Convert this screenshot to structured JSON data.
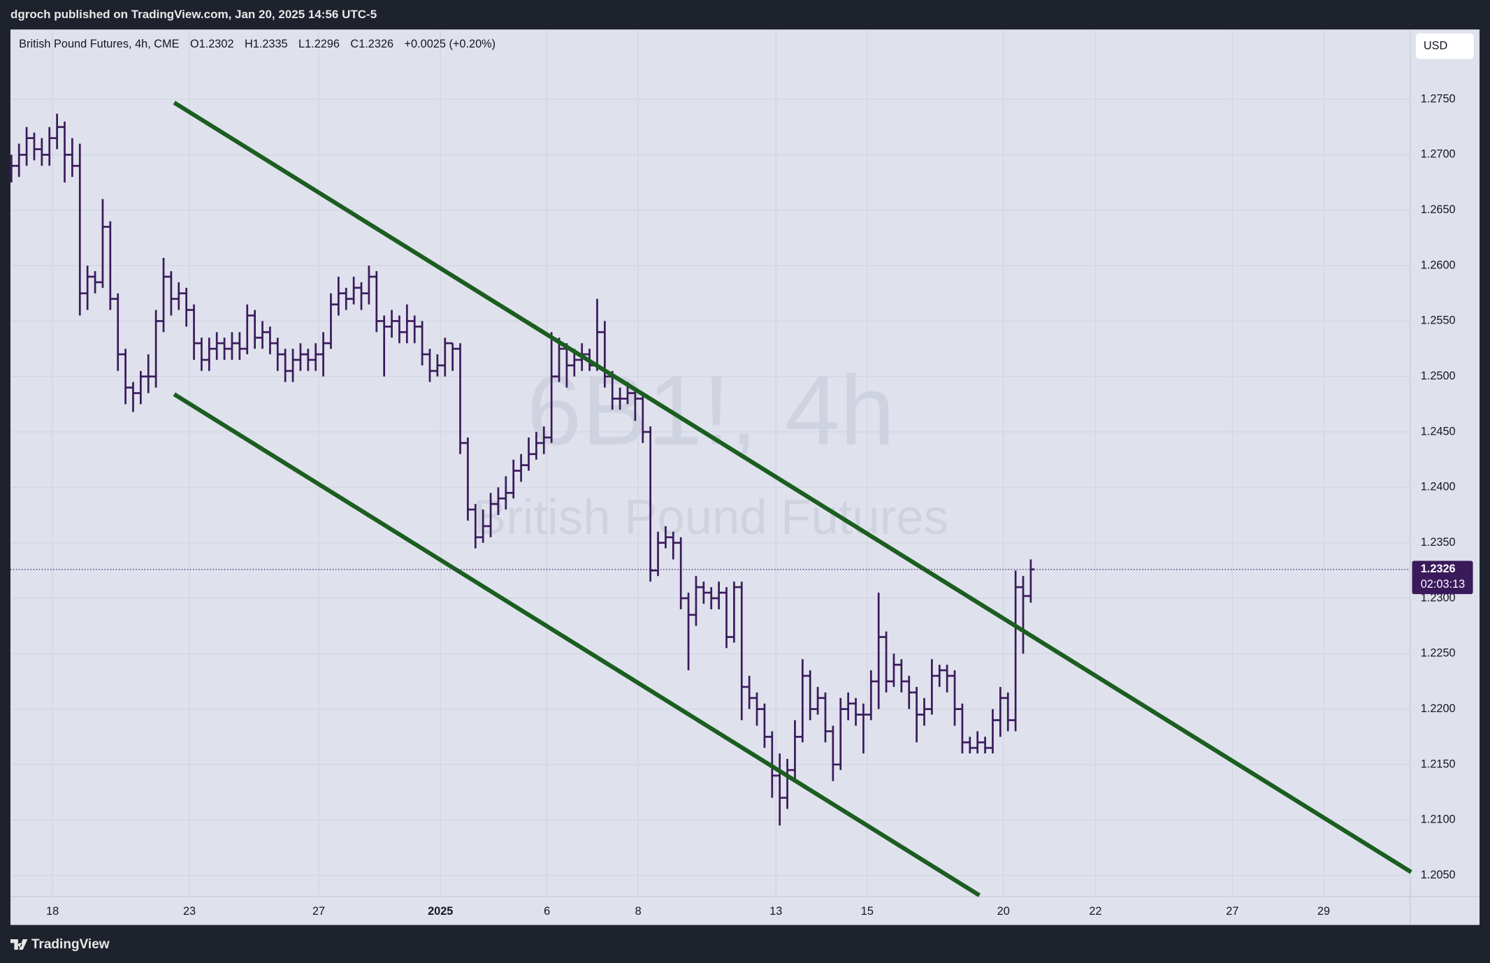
{
  "header": "dgroch published on TradingView.com, Jan 20, 2025 14:56 UTC-5",
  "footer": "TradingView",
  "currency_button": "USD",
  "chart_data": {
    "type": "ohlc",
    "legend": {
      "symbol": "British Pound Futures, 4h, CME",
      "ohlc": [
        "O1.2302",
        "H1.2335",
        "L1.2296",
        "C1.2326"
      ],
      "change": "+0.0025 (+0.20%)"
    },
    "watermark": [
      "6B1!, 4h",
      "British Pound Futures"
    ],
    "color": "#3b1a5c",
    "open": [
      1.2685,
      1.269,
      1.27,
      1.2715,
      1.2705,
      1.27,
      1.2715,
      1.2725,
      1.27,
      1.269,
      1.2575,
      1.259,
      1.2585,
      1.2635,
      1.257,
      1.252,
      1.249,
      1.2485,
      1.25,
      1.25,
      1.255,
      1.259,
      1.257,
      1.2575,
      1.256,
      1.253,
      1.2515,
      1.2525,
      1.253,
      1.2525,
      1.253,
      1.2525,
      1.2555,
      1.2535,
      1.254,
      1.253,
      1.252,
      1.2505,
      1.2515,
      1.252,
      1.2515,
      1.252,
      1.253,
      1.2565,
      1.2575,
      1.257,
      1.258,
      1.2575,
      1.259,
      1.255,
      1.2545,
      1.255,
      1.254,
      1.255,
      1.2545,
      1.252,
      1.2505,
      1.251,
      1.253,
      1.2525,
      1.244,
      1.238,
      1.2355,
      1.2365,
      1.2385,
      1.239,
      1.2395,
      1.2415,
      1.242,
      1.243,
      1.244,
      1.2445,
      1.25,
      1.2525,
      1.251,
      1.2515,
      1.252,
      1.251,
      1.254,
      1.25,
      1.248,
      1.248,
      1.2485,
      1.248,
      1.245,
      1.2325,
      1.235,
      1.2355,
      1.235,
      1.23,
      1.2285,
      1.231,
      1.2305,
      1.23,
      1.2305,
      1.2265,
      1.231,
      1.222,
      1.221,
      1.22,
      1.2175,
      1.214,
      1.212,
      1.2145,
      1.2175,
      1.223,
      1.22,
      1.221,
      1.218,
      1.215,
      1.22,
      1.2205,
      1.2195,
      1.2195,
      1.2225,
      1.2265,
      1.2225,
      1.224,
      1.2225,
      1.2215,
      1.2195,
      1.22,
      1.223,
      1.2235,
      1.223,
      1.22,
      1.217,
      1.2165,
      1.217,
      1.2165,
      1.219,
      1.221,
      1.219,
      1.231,
      1.2302
    ],
    "high": [
      1.27,
      1.271,
      1.2725,
      1.272,
      1.2715,
      1.2725,
      1.2737,
      1.273,
      1.2715,
      1.271,
      1.26,
      1.2595,
      1.266,
      1.264,
      1.2575,
      1.2525,
      1.2495,
      1.2505,
      1.252,
      1.256,
      1.2607,
      1.2595,
      1.2585,
      1.258,
      1.2565,
      1.2535,
      1.2535,
      1.254,
      1.2535,
      1.254,
      1.254,
      1.2565,
      1.256,
      1.255,
      1.2545,
      1.2535,
      1.2525,
      1.2525,
      1.253,
      1.2525,
      1.253,
      1.254,
      1.2575,
      1.259,
      1.258,
      1.259,
      1.2585,
      1.26,
      1.2595,
      1.2555,
      1.256,
      1.2555,
      1.2565,
      1.2555,
      1.255,
      1.2525,
      1.252,
      1.2535,
      1.253,
      1.253,
      1.2445,
      1.2385,
      1.238,
      1.2395,
      1.24,
      1.241,
      1.2425,
      1.243,
      1.2445,
      1.245,
      1.2455,
      1.254,
      1.2535,
      1.253,
      1.2525,
      1.253,
      1.2525,
      1.257,
      1.255,
      1.2505,
      1.249,
      1.2495,
      1.249,
      1.2485,
      1.2455,
      1.236,
      1.2365,
      1.236,
      1.2355,
      1.2305,
      1.232,
      1.2315,
      1.231,
      1.2315,
      1.231,
      1.2315,
      1.2315,
      1.223,
      1.2215,
      1.2205,
      1.218,
      1.216,
      1.2155,
      1.219,
      1.2245,
      1.2235,
      1.222,
      1.2215,
      1.2185,
      1.221,
      1.2215,
      1.221,
      1.2205,
      1.2235,
      1.2305,
      1.227,
      1.225,
      1.2245,
      1.223,
      1.222,
      1.221,
      1.2245,
      1.224,
      1.224,
      1.2235,
      1.2205,
      1.2175,
      1.218,
      1.2175,
      1.22,
      1.222,
      1.2215,
      1.2325,
      1.232,
      1.2335
    ],
    "low": [
      1.2675,
      1.268,
      1.269,
      1.2695,
      1.269,
      1.269,
      1.2705,
      1.2675,
      1.268,
      1.2555,
      1.256,
      1.2575,
      1.258,
      1.256,
      1.2505,
      1.2475,
      1.2468,
      1.2475,
      1.2485,
      1.249,
      1.254,
      1.2555,
      1.256,
      1.2545,
      1.2515,
      1.2505,
      1.2505,
      1.2515,
      1.2515,
      1.2515,
      1.2515,
      1.252,
      1.2525,
      1.2525,
      1.252,
      1.2505,
      1.2495,
      1.2495,
      1.2505,
      1.2505,
      1.2505,
      1.25,
      1.2525,
      1.2555,
      1.256,
      1.2565,
      1.256,
      1.2565,
      1.254,
      1.25,
      1.2535,
      1.253,
      1.253,
      1.253,
      1.251,
      1.2495,
      1.25,
      1.25,
      1.2505,
      1.243,
      1.237,
      1.2345,
      1.235,
      1.2355,
      1.2375,
      1.238,
      1.239,
      1.2405,
      1.2415,
      1.2425,
      1.243,
      1.244,
      1.2495,
      1.249,
      1.25,
      1.2505,
      1.2505,
      1.2505,
      1.249,
      1.247,
      1.247,
      1.2475,
      1.246,
      1.244,
      1.2315,
      1.232,
      1.2345,
      1.2335,
      1.229,
      1.2235,
      1.2275,
      1.2295,
      1.229,
      1.229,
      1.2255,
      1.226,
      1.219,
      1.22,
      1.2185,
      1.2165,
      1.212,
      1.2095,
      1.211,
      1.2135,
      1.217,
      1.219,
      1.2195,
      1.217,
      1.2135,
      1.2145,
      1.219,
      1.2185,
      1.216,
      1.219,
      1.22,
      1.2215,
      1.222,
      1.2215,
      1.22,
      1.217,
      1.2185,
      1.2195,
      1.222,
      1.2215,
      1.2185,
      1.216,
      1.216,
      1.216,
      1.216,
      1.216,
      1.2175,
      1.218,
      1.218,
      1.225,
      1.2296
    ],
    "close": [
      1.269,
      1.27,
      1.2715,
      1.2705,
      1.27,
      1.2715,
      1.2725,
      1.27,
      1.269,
      1.2575,
      1.259,
      1.2585,
      1.2635,
      1.257,
      1.252,
      1.249,
      1.2485,
      1.25,
      1.25,
      1.255,
      1.259,
      1.257,
      1.2575,
      1.256,
      1.253,
      1.2515,
      1.2525,
      1.253,
      1.2525,
      1.253,
      1.2525,
      1.2555,
      1.2535,
      1.254,
      1.253,
      1.252,
      1.2505,
      1.2515,
      1.252,
      1.2515,
      1.252,
      1.253,
      1.2565,
      1.2575,
      1.257,
      1.258,
      1.2575,
      1.259,
      1.255,
      1.2545,
      1.255,
      1.254,
      1.255,
      1.2545,
      1.252,
      1.2505,
      1.251,
      1.253,
      1.2525,
      1.244,
      1.238,
      1.2355,
      1.2365,
      1.2385,
      1.239,
      1.2395,
      1.2415,
      1.242,
      1.243,
      1.244,
      1.2445,
      1.25,
      1.2525,
      1.251,
      1.2515,
      1.252,
      1.251,
      1.254,
      1.25,
      1.248,
      1.248,
      1.2485,
      1.248,
      1.245,
      1.2325,
      1.235,
      1.2355,
      1.235,
      1.23,
      1.2285,
      1.231,
      1.2305,
      1.23,
      1.2305,
      1.2265,
      1.231,
      1.222,
      1.221,
      1.22,
      1.2175,
      1.214,
      1.212,
      1.2145,
      1.2175,
      1.223,
      1.22,
      1.221,
      1.218,
      1.215,
      1.22,
      1.2205,
      1.2195,
      1.2195,
      1.2225,
      1.2265,
      1.2225,
      1.224,
      1.2225,
      1.2215,
      1.2195,
      1.22,
      1.223,
      1.2235,
      1.223,
      1.22,
      1.217,
      1.2165,
      1.217,
      1.2165,
      1.219,
      1.221,
      1.219,
      1.231,
      1.2302,
      1.2326
    ],
    "xlim": [
      -0.125,
      183.875
    ],
    "xticks": [
      {
        "value": 5.4,
        "label": "18"
      },
      {
        "value": 23.4,
        "label": "23"
      },
      {
        "value": 40.4,
        "label": "27"
      },
      {
        "value": 56.4,
        "label": "2025"
      },
      {
        "value": 70.4,
        "label": "6"
      },
      {
        "value": 82.4,
        "label": "8"
      },
      {
        "value": 100.5,
        "label": "13"
      },
      {
        "value": 112.5,
        "label": "15"
      },
      {
        "value": 130.4,
        "label": "20"
      },
      {
        "value": 142.5,
        "label": "22"
      },
      {
        "value": 160.5,
        "label": "27"
      },
      {
        "value": 172.5,
        "label": "29"
      }
    ],
    "ylim": [
      1.2031,
      1.2813
    ],
    "yticks": [
      {
        "value": 1.205,
        "label": "1.2050"
      },
      {
        "value": 1.21,
        "label": "1.2100"
      },
      {
        "value": 1.215,
        "label": "1.2150"
      },
      {
        "value": 1.22,
        "label": "1.2200"
      },
      {
        "value": 1.225,
        "label": "1.2250"
      },
      {
        "value": 1.23,
        "label": "1.2300"
      },
      {
        "value": 1.235,
        "label": "1.2350"
      },
      {
        "value": 1.24,
        "label": "1.2400"
      },
      {
        "value": 1.245,
        "label": "1.2450"
      },
      {
        "value": 1.25,
        "label": "1.2500"
      },
      {
        "value": 1.255,
        "label": "1.2550"
      },
      {
        "value": 1.26,
        "label": "1.2600"
      },
      {
        "value": 1.265,
        "label": "1.2650"
      },
      {
        "value": 1.27,
        "label": "1.2700"
      },
      {
        "value": 1.275,
        "label": "1.2750"
      }
    ],
    "grid": true,
    "last_price": {
      "value": 1.2326,
      "countdown": "02:03:13"
    },
    "trendlines": [
      {
        "color": "#1b5e20",
        "points": [
          [
            21.4,
            1.2747
          ],
          [
            184,
            1.2053
          ]
        ]
      },
      {
        "color": "#1b5e20",
        "points": [
          [
            21.4,
            1.2484
          ],
          [
            127.25,
            1.2032
          ]
        ]
      }
    ]
  }
}
